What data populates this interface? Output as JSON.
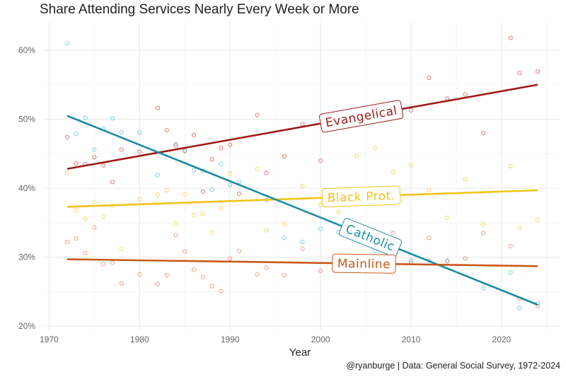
{
  "chart_data": {
    "type": "scatter",
    "title": "Share Attending Services Nearly Every Week or More",
    "xlabel": "Year",
    "ylabel": "",
    "caption": "@ryanburge | Data: General Social Survey, 1972-2024",
    "xlim": [
      1969.5,
      2026.5
    ],
    "ylim": [
      19.5,
      64
    ],
    "x_ticks": [
      1970,
      1980,
      1990,
      2000,
      2010,
      2020
    ],
    "y_ticks": [
      20,
      30,
      40,
      50,
      60
    ],
    "y_tick_labels": [
      "20%",
      "30%",
      "40%",
      "50%",
      "60%"
    ],
    "grid": true,
    "series": [
      {
        "name": "Evangelical",
        "color": "#9e1b18",
        "point_color": "#d9534f",
        "trend": [
          [
            1972,
            42.8
          ],
          [
            2024,
            55.0
          ]
        ],
        "label_x": 2004.5,
        "points": [
          [
            1972,
            47.4
          ],
          [
            1973,
            43.6
          ],
          [
            1974,
            43.5
          ],
          [
            1975,
            44.5
          ],
          [
            1976,
            43.3
          ],
          [
            1977,
            40.9
          ],
          [
            1978,
            45.6
          ],
          [
            1980,
            45.3
          ],
          [
            1982,
            51.6
          ],
          [
            1983,
            48.4
          ],
          [
            1984,
            46.2
          ],
          [
            1985,
            45.4
          ],
          [
            1986,
            47.7
          ],
          [
            1987,
            39.5
          ],
          [
            1988,
            44.2
          ],
          [
            1989,
            45.8
          ],
          [
            1990,
            46.3
          ],
          [
            1991,
            39.2
          ],
          [
            1993,
            50.6
          ],
          [
            1994,
            42.2
          ],
          [
            1996,
            44.6
          ],
          [
            1998,
            49.3
          ],
          [
            2000,
            44.0
          ],
          [
            2008,
            51.2
          ],
          [
            2010,
            51.3
          ],
          [
            2012,
            56.0
          ],
          [
            2014,
            53.0
          ],
          [
            2016,
            53.6
          ],
          [
            2018,
            48.0
          ],
          [
            2021,
            61.8
          ],
          [
            2022,
            56.7
          ],
          [
            2024,
            56.9
          ]
        ]
      },
      {
        "name": "Black Prot.",
        "color": "#f0c419",
        "point_color": "#f4d03f",
        "trend": [
          [
            1972,
            37.3
          ],
          [
            2024,
            39.7
          ]
        ],
        "label_x": 2004.5,
        "points": [
          [
            1972,
            42.2
          ],
          [
            1973,
            36.8
          ],
          [
            1974,
            35.6
          ],
          [
            1975,
            38.0
          ],
          [
            1976,
            35.9
          ],
          [
            1977,
            37.5
          ],
          [
            1978,
            31.2
          ],
          [
            1980,
            38.4
          ],
          [
            1982,
            39.1
          ],
          [
            1983,
            39.7
          ],
          [
            1984,
            34.9
          ],
          [
            1985,
            39.1
          ],
          [
            1986,
            36.1
          ],
          [
            1987,
            36.3
          ],
          [
            1988,
            33.6
          ],
          [
            1989,
            37.1
          ],
          [
            1990,
            42.1
          ],
          [
            1993,
            42.8
          ],
          [
            1994,
            33.9
          ],
          [
            1996,
            34.8
          ],
          [
            1998,
            40.3
          ],
          [
            2000,
            37.6
          ],
          [
            2002,
            36.6
          ],
          [
            2004,
            44.7
          ],
          [
            2006,
            45.8
          ],
          [
            2008,
            42.4
          ],
          [
            2010,
            43.3
          ],
          [
            2012,
            39.7
          ],
          [
            2014,
            35.7
          ],
          [
            2016,
            41.3
          ],
          [
            2018,
            34.8
          ],
          [
            2021,
            43.2
          ],
          [
            2022,
            34.3
          ],
          [
            2024,
            35.4
          ]
        ]
      },
      {
        "name": "Catholic",
        "color": "#1a8ba3",
        "point_color": "#5bc0de",
        "trend": [
          [
            1972,
            50.5
          ],
          [
            2024,
            23.1
          ]
        ],
        "label_x": 2005.5,
        "points": [
          [
            1972,
            61.0
          ],
          [
            1973,
            47.9
          ],
          [
            1974,
            50.2
          ],
          [
            1975,
            45.6
          ],
          [
            1976,
            48.6
          ],
          [
            1977,
            50.1
          ],
          [
            1978,
            48.1
          ],
          [
            1980,
            48.1
          ],
          [
            1982,
            41.9
          ],
          [
            1984,
            46.4
          ],
          [
            1985,
            45.5
          ],
          [
            1986,
            42.6
          ],
          [
            1987,
            42.5
          ],
          [
            1988,
            39.8
          ],
          [
            1989,
            43.5
          ],
          [
            1990,
            40.5
          ],
          [
            1991,
            40.9
          ],
          [
            1994,
            38.3
          ],
          [
            1996,
            32.8
          ],
          [
            1998,
            32.2
          ],
          [
            2000,
            34.1
          ],
          [
            2002,
            33.6
          ],
          [
            2004,
            33.4
          ],
          [
            2006,
            31.0
          ],
          [
            2008,
            31.5
          ],
          [
            2010,
            29.5
          ],
          [
            2012,
            29.5
          ],
          [
            2014,
            29.5
          ],
          [
            2016,
            29.8
          ],
          [
            2018,
            25.5
          ],
          [
            2021,
            27.8
          ],
          [
            2022,
            22.6
          ],
          [
            2024,
            23.3
          ]
        ]
      },
      {
        "name": "Mainline",
        "color": "#c9581a",
        "point_color": "#e8876a",
        "trend": [
          [
            1972,
            29.7
          ],
          [
            2024,
            28.7
          ]
        ],
        "label_x": 2004.8,
        "points": [
          [
            1972,
            32.2
          ],
          [
            1973,
            32.7
          ],
          [
            1974,
            30.6
          ],
          [
            1975,
            34.3
          ],
          [
            1976,
            29.0
          ],
          [
            1977,
            29.2
          ],
          [
            1978,
            26.2
          ],
          [
            1980,
            27.5
          ],
          [
            1982,
            26.1
          ],
          [
            1983,
            27.4
          ],
          [
            1984,
            33.2
          ],
          [
            1985,
            30.8
          ],
          [
            1986,
            28.2
          ],
          [
            1987,
            27.1
          ],
          [
            1988,
            25.8
          ],
          [
            1989,
            25.1
          ],
          [
            1990,
            29.8
          ],
          [
            1991,
            30.9
          ],
          [
            1993,
            27.5
          ],
          [
            1994,
            28.5
          ],
          [
            1996,
            27.4
          ],
          [
            1998,
            31.2
          ],
          [
            2000,
            28.0
          ],
          [
            2002,
            29.4
          ],
          [
            2004,
            28.4
          ],
          [
            2006,
            29.2
          ],
          [
            2008,
            33.5
          ],
          [
            2010,
            29.2
          ],
          [
            2012,
            32.8
          ],
          [
            2014,
            29.4
          ],
          [
            2016,
            29.8
          ],
          [
            2018,
            33.5
          ],
          [
            2021,
            31.6
          ],
          [
            2022,
            24.0
          ],
          [
            2024,
            22.9
          ]
        ]
      }
    ]
  }
}
